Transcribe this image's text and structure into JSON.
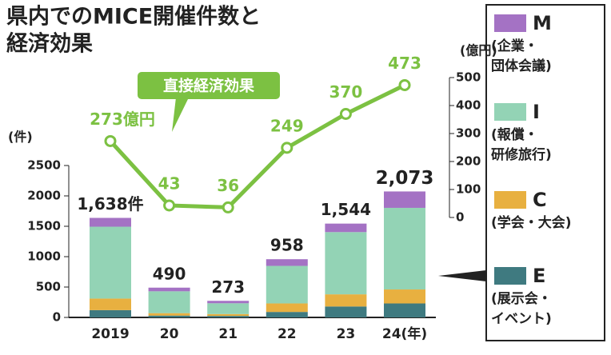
{
  "chart_data": {
    "type": "bar",
    "stacked": true,
    "title": [
      "県内でのMICE開催件数と",
      "経済効果"
    ],
    "categories": [
      "2019",
      "20",
      "21",
      "22",
      "23",
      "24(年)"
    ],
    "ylabel": "(件)",
    "ylim": [
      0,
      2500
    ],
    "yticks": [
      0,
      500,
      1000,
      1500,
      2000,
      2500
    ],
    "y2label": "(億円)",
    "y2lim": [
      0,
      500
    ],
    "y2ticks": [
      0,
      100,
      200,
      300,
      400,
      500
    ],
    "series": [
      {
        "name": "E",
        "description": [
          "(展示会・",
          "イベント)"
        ],
        "color": "#3f7a80",
        "values": [
          120,
          30,
          25,
          90,
          180,
          230
        ]
      },
      {
        "name": "C",
        "description": [
          "(学会・大会)"
        ],
        "color": "#e8b040",
        "values": [
          190,
          40,
          30,
          140,
          200,
          230
        ]
      },
      {
        "name": "I",
        "description": [
          "(報償・",
          "研修旅行)"
        ],
        "color": "#93d3b5",
        "values": [
          1183,
          360,
          178,
          618,
          1024,
          1343
        ]
      },
      {
        "name": "M",
        "description": [
          "(企業・",
          "団体会議)"
        ],
        "color": "#a472c4",
        "values": [
          145,
          60,
          40,
          110,
          140,
          270
        ]
      },
      {
        "name": "直接経済効果",
        "type": "line",
        "axis": "y2",
        "color": "#7cc142",
        "values": [
          273,
          43,
          36,
          249,
          370,
          473
        ],
        "value_labels": [
          "273億円",
          "43",
          "36",
          "249",
          "370",
          "473"
        ]
      }
    ],
    "totals": {
      "values": [
        1638,
        490,
        273,
        958,
        1544,
        2073
      ],
      "value_labels": [
        "1,638件",
        "490",
        "273",
        "958",
        "1,544",
        "2,073"
      ]
    }
  }
}
